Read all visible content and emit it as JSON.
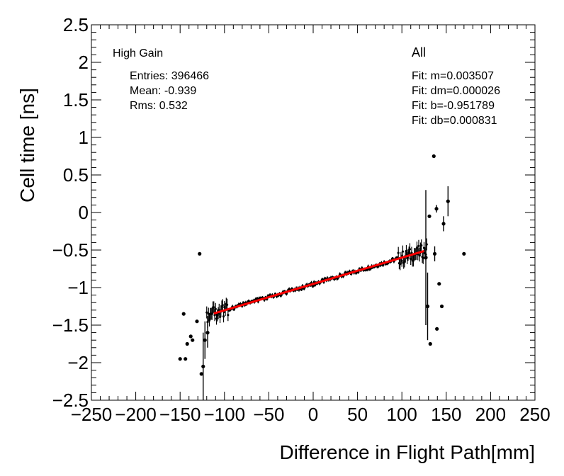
{
  "chart_data": {
    "type": "scatter",
    "title": "",
    "xlabel": "Difference in Flight Path[mm]",
    "ylabel": "Cell time [ns]",
    "xlim": [
      -250,
      250
    ],
    "ylim": [
      -2.5,
      2.5
    ],
    "x_ticks": [
      -250,
      -200,
      -150,
      -100,
      -50,
      0,
      50,
      100,
      150,
      200,
      250
    ],
    "x_tick_labels": [
      "−250",
      "−200",
      "−150",
      "−100",
      "−50",
      "0",
      "50",
      "100",
      "150",
      "200",
      "250"
    ],
    "y_ticks": [
      -2.5,
      -2,
      -1.5,
      -1,
      -0.5,
      0,
      0.5,
      1,
      1.5,
      2,
      2.5
    ],
    "y_tick_labels": [
      "−2.5",
      "−2",
      "−1.5",
      "−1",
      "−0.5",
      "0",
      "0.5",
      "1",
      "1.5",
      "2",
      "2.5"
    ],
    "grid": false,
    "stats_box": {
      "label": "High Gain",
      "entries": "Entries: 396466",
      "mean": "Mean: -0.939",
      "rms": "Rms: 0.532"
    },
    "fit_box": {
      "label": "All",
      "m": "Fit: m=0.003507",
      "dm": "Fit: dm=0.000026",
      "b": "Fit: b=-0.951789",
      "db": "Fit: db=0.000831"
    },
    "fit_line": {
      "slope": 0.003507,
      "intercept": -0.951789,
      "x_start": -112,
      "x_end": 125,
      "color": "#ff0000"
    },
    "band_points": {
      "x_start": -120,
      "x_end": 128,
      "step": 1,
      "slope": 0.003507,
      "intercept": -0.951789,
      "color": "#000000"
    },
    "outliers": [
      {
        "x": -150,
        "y": -1.95,
        "err": 0
      },
      {
        "x": -146,
        "y": -1.35,
        "err": 0
      },
      {
        "x": -144,
        "y": -1.95,
        "err": 0
      },
      {
        "x": -142,
        "y": -1.75,
        "err": 0
      },
      {
        "x": -138,
        "y": -1.65,
        "err": 0
      },
      {
        "x": -136,
        "y": -1.7,
        "err": 0
      },
      {
        "x": -131,
        "y": -1.45,
        "err": 0
      },
      {
        "x": -128,
        "y": -0.55,
        "err": 0
      },
      {
        "x": -126,
        "y": -2.15,
        "err": 0
      },
      {
        "x": -124,
        "y": -2.05,
        "err": 0.45
      },
      {
        "x": -122,
        "y": -1.7,
        "err": 0.25
      },
      {
        "x": -119,
        "y": -1.6,
        "err": 0.2
      },
      {
        "x": 127,
        "y": -0.6,
        "err": 0.9
      },
      {
        "x": 129,
        "y": -1.25,
        "err": 0.45
      },
      {
        "x": 131,
        "y": -0.05,
        "err": 0
      },
      {
        "x": 132,
        "y": -1.75,
        "err": 0
      },
      {
        "x": 136,
        "y": 0.75,
        "err": 0
      },
      {
        "x": 137,
        "y": -0.55,
        "err": 0.1
      },
      {
        "x": 139,
        "y": 0.05,
        "err": 0.05
      },
      {
        "x": 139.5,
        "y": -1.55,
        "err": 0
      },
      {
        "x": 142,
        "y": -0.95,
        "err": 0
      },
      {
        "x": 145,
        "y": -1.25,
        "err": 0
      },
      {
        "x": 147,
        "y": -0.15,
        "err": 0.1
      },
      {
        "x": 152,
        "y": 0.15,
        "err": 0.2
      },
      {
        "x": 170,
        "y": -0.55,
        "err": 0
      }
    ]
  }
}
